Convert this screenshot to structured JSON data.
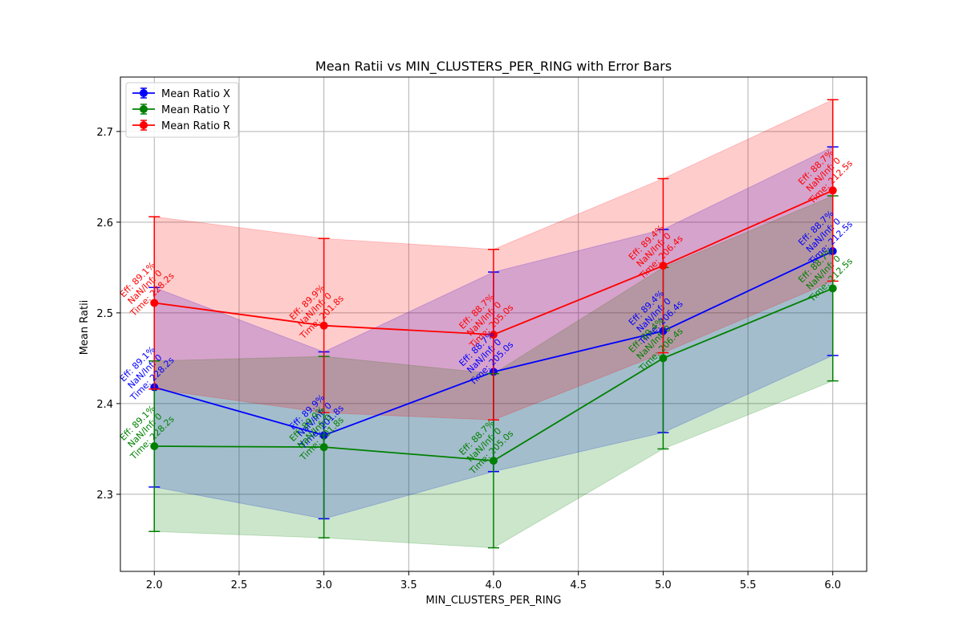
{
  "chart_data": {
    "type": "line",
    "title": "Mean Ratii vs MIN_CLUSTERS_PER_RING with Error Bars",
    "xlabel": "MIN_CLUSTERS_PER_RING",
    "ylabel": "Mean Ratii",
    "xlim": [
      1.8,
      6.2
    ],
    "ylim": [
      2.215,
      2.76
    ],
    "xticks": [
      "2.0",
      "2.5",
      "3.0",
      "3.5",
      "4.0",
      "4.5",
      "5.0",
      "5.5",
      "6.0"
    ],
    "yticks": [
      "2.3",
      "2.4",
      "2.5",
      "2.6",
      "2.7"
    ],
    "grid": true,
    "legend_position": "top-left",
    "x": [
      2,
      3,
      4,
      5,
      6
    ],
    "series": [
      {
        "name": "Mean Ratio X",
        "color": "#0000ff",
        "values": [
          2.418,
          2.365,
          2.435,
          2.48,
          2.568
        ],
        "errors": [
          0.11,
          0.092,
          0.11,
          0.112,
          0.115
        ],
        "annotations": [
          [
            "Eff: 89.1%",
            "NaN/Inf: 0",
            "Time: 228.2s"
          ],
          [
            "Eff: 89.9%",
            "NaN/Inf: 0",
            "Time: 201.8s"
          ],
          [
            "Eff: 88.7%",
            "NaN/Inf: 0",
            "Time: 205.0s"
          ],
          [
            "Eff: 89.4%",
            "NaN/Inf: 0",
            "Time: 206.4s"
          ],
          [
            "Eff: 88.7%",
            "NaN/Inf: 0",
            "Time: 212.5s"
          ]
        ]
      },
      {
        "name": "Mean Ratio Y",
        "color": "#008000",
        "values": [
          2.353,
          2.352,
          2.337,
          2.45,
          2.527
        ],
        "errors": [
          0.094,
          0.1,
          0.096,
          0.1,
          0.102
        ],
        "annotations": [
          [
            "Eff: 89.1%",
            "NaN/Inf: 0",
            "Time: 228.2s"
          ],
          [
            "Eff: 89.9%",
            "NaN/Inf: 0",
            "Time: 201.8s"
          ],
          [
            "Eff: 88.7%",
            "NaN/Inf: 0",
            "Time: 205.0s"
          ],
          [
            "Eff: 89.4%",
            "NaN/Inf: 0",
            "Time: 206.4s"
          ],
          [
            "Eff: 88.7%",
            "NaN/Inf: 0",
            "Time: 212.5s"
          ]
        ]
      },
      {
        "name": "Mean Ratio R",
        "color": "#ff0000",
        "values": [
          2.511,
          2.486,
          2.476,
          2.552,
          2.635
        ],
        "errors": [
          0.095,
          0.096,
          0.094,
          0.096,
          0.1
        ],
        "annotations": [
          [
            "Eff: 89.1%",
            "NaN/Inf: 0",
            "Time: 228.2s"
          ],
          [
            "Eff: 89.9%",
            "NaN/Inf: 0",
            "Time: 201.8s"
          ],
          [
            "Eff: 88.7%",
            "NaN/Inf: 0",
            "Time: 205.0s"
          ],
          [
            "Eff: 89.4%",
            "NaN/Inf: 0",
            "Time: 206.4s"
          ],
          [
            "Eff: 88.7%",
            "NaN/Inf: 0",
            "Time: 212.5s"
          ]
        ]
      }
    ]
  }
}
